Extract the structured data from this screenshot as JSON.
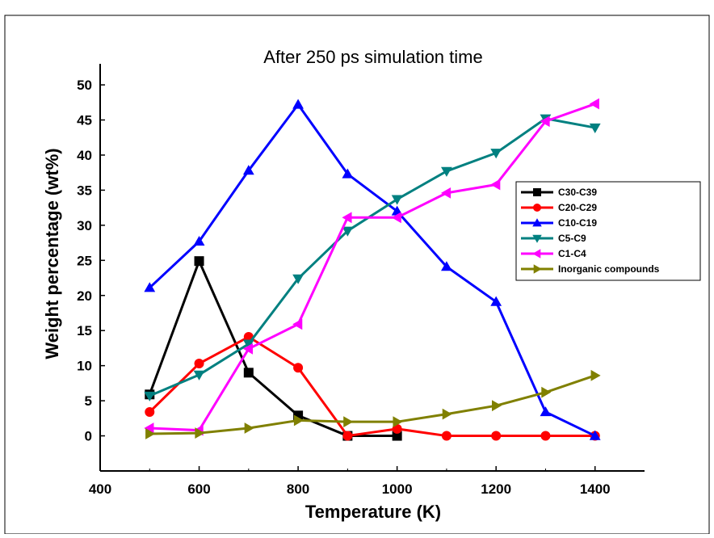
{
  "chart_data": {
    "type": "line",
    "title": "After 250 ps simulation time",
    "xlabel": "Temperature (K)",
    "ylabel": "Weight percentage (wt%)",
    "xlim": [
      400,
      1500
    ],
    "ylim": [
      -5,
      53
    ],
    "xticks": [
      400,
      600,
      800,
      1000,
      1200,
      1400
    ],
    "yticks": [
      0,
      5,
      10,
      15,
      20,
      25,
      30,
      35,
      40,
      45,
      50
    ],
    "grid": false,
    "legend_position": "right",
    "series": [
      {
        "name": "C30-C39",
        "color": "#000000",
        "marker": "square",
        "x": [
          500,
          600,
          700,
          800,
          900,
          1000
        ],
        "y": [
          5.9,
          24.9,
          9.0,
          2.9,
          0.0,
          0.0
        ]
      },
      {
        "name": "C20-C29",
        "color": "#ff0000",
        "marker": "circle",
        "x": [
          500,
          600,
          700,
          800,
          900,
          1000,
          1100,
          1200,
          1300,
          1400
        ],
        "y": [
          3.4,
          10.3,
          14.1,
          9.7,
          0.0,
          1.0,
          0.0,
          0.0,
          0.0,
          0.0
        ]
      },
      {
        "name": "C10-C19",
        "color": "#0000ff",
        "marker": "triangle-up",
        "x": [
          500,
          600,
          700,
          800,
          900,
          1000,
          1100,
          1200,
          1300,
          1400
        ],
        "y": [
          21.1,
          27.7,
          37.8,
          47.2,
          37.3,
          32.0,
          24.1,
          19.1,
          3.4,
          0.0
        ]
      },
      {
        "name": "C5-C9",
        "color": "#008080",
        "marker": "triangle-down",
        "x": [
          500,
          600,
          700,
          800,
          900,
          1000,
          1100,
          1200,
          1300,
          1400
        ],
        "y": [
          5.7,
          8.7,
          13.1,
          22.4,
          29.2,
          33.7,
          37.7,
          40.3,
          45.2,
          43.9
        ]
      },
      {
        "name": "C1-C4",
        "color": "#ff00ff",
        "marker": "triangle-left",
        "x": [
          500,
          600,
          700,
          800,
          900,
          1000,
          1100,
          1200,
          1300,
          1400
        ],
        "y": [
          1.1,
          0.8,
          12.4,
          15.9,
          31.1,
          31.1,
          34.6,
          35.8,
          44.8,
          47.3
        ]
      },
      {
        "name": "Inorganic compounds",
        "color": "#808000",
        "marker": "triangle-right",
        "x": [
          500,
          600,
          700,
          800,
          900,
          1000,
          1100,
          1200,
          1300,
          1400
        ],
        "y": [
          0.3,
          0.4,
          1.1,
          2.2,
          2.0,
          2.0,
          3.1,
          4.3,
          6.2,
          8.6
        ]
      }
    ]
  }
}
